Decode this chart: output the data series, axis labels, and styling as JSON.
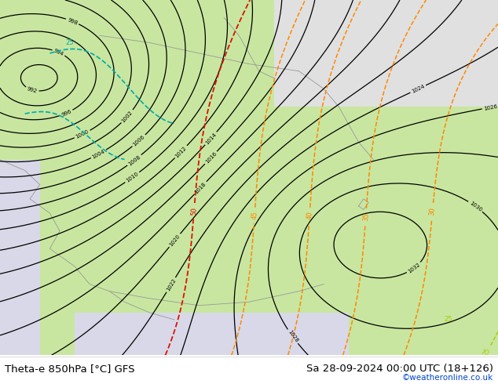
{
  "title_left": "Theta-e 850hPa [°C] GFS",
  "title_right": "Sa 28-09-2024 00:00 UTC (18+126)",
  "credit": "©weatheronline.co.uk",
  "credit_color": "#0044cc",
  "fig_width": 6.34,
  "fig_height": 4.9,
  "dpi": 100,
  "map_bg_light_green": "#c8e6a0",
  "map_bg_white": "#f0f0f0",
  "map_bg_gray": "#d0d0d0",
  "contour_black": "#000000",
  "contour_orange": "#ff8800",
  "contour_red": "#ee2200",
  "contour_cyan": "#00aaaa",
  "contour_yellow_green": "#aacc00",
  "label_fontsize": 7,
  "credit_fontsize": 7.5,
  "title_fontsize": 9.5,
  "bottom_text_color": "#000000"
}
